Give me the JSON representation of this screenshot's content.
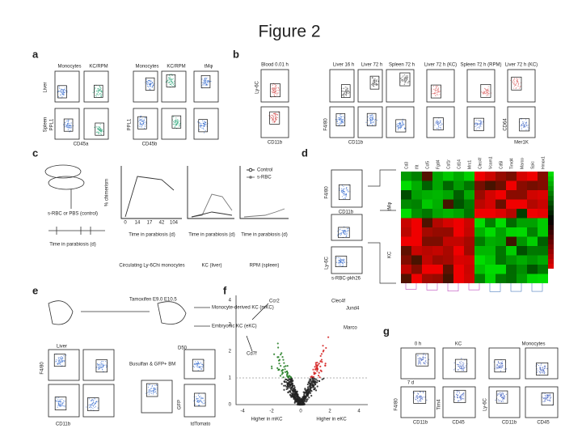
{
  "title": "Figure 2",
  "panels": {
    "a": {
      "label": "a",
      "columns": [
        "Monocytes",
        "KC/RPM",
        "Monocytes",
        "KC/RPM",
        "tMφ"
      ],
      "rows": [
        "Liver",
        "Spleen"
      ],
      "x_axis": [
        "CD45a",
        "CD45b"
      ],
      "y_axis": [
        "PPL1",
        "PPL1"
      ]
    },
    "b": {
      "label": "b",
      "columns": [
        "Blood 0.01 h",
        "Liver 16 h",
        "Liver 72 h",
        "Spleen 72 h",
        "Liver 72 h (KC)",
        "Spleen 72 h (RPM)",
        "Liver 72 h (KC)"
      ],
      "x_axis": [
        "CD11b",
        "CD11b",
        "Mer1K"
      ],
      "y_axis": [
        "Ly-6C",
        "F4/80",
        "CD64"
      ]
    },
    "c": {
      "label": "c",
      "treatment": "s-RBC or PBS (control)",
      "legend": [
        "Control",
        "s-RBC"
      ],
      "y_axis": "% chimerism",
      "ticks": [
        "0",
        "14",
        "17",
        "42",
        "104"
      ],
      "x_axis": "Time in parabiosis (d)",
      "captions": [
        "Circulating Ly-6Chi monocytes",
        "KC (liver)",
        "RPM (spleen)"
      ]
    },
    "d": {
      "label": "d",
      "x_axis": [
        "CD11b",
        "s-RBC-pkh26"
      ],
      "y_axis": [
        "F4/80",
        "Ly-6C"
      ],
      "rows": [
        "tMφ",
        "KC"
      ],
      "genes": [
        "Cd3",
        "Ifit",
        "Ccl5",
        "Fgd4",
        "Csf1r",
        "Cd14",
        "Mrc1",
        "Clec4f",
        "Vcam1",
        "Cd5l",
        "Timd4",
        "Marco",
        "Spic",
        "Hmox1"
      ]
    },
    "e": {
      "label": "e",
      "treatment": "Tamoxifen E9.0 E10.5",
      "outcomes": [
        "Monocyte-derived KC (mKC)",
        "Embryonic KC (eKC)"
      ],
      "protocol": "Busulfan & GFP+ BM",
      "day": "D50",
      "row": "Liver",
      "x_axis": [
        "CD11b",
        "tdTomato"
      ],
      "y_axis": [
        "F4/80",
        "GFP"
      ]
    },
    "f": {
      "label": "f",
      "genes": [
        "Ccr2",
        "Cd7f",
        "Clec4f",
        "Jund4",
        "Marco"
      ],
      "yticks": [
        "0",
        "1",
        "2",
        "3",
        "4"
      ],
      "xticks": [
        "-4",
        "-2",
        "0",
        "2",
        "4"
      ],
      "x_axis": [
        "Higher in mKC",
        "Higher in eKC"
      ]
    },
    "g": {
      "label": "g",
      "columns": [
        "0 h",
        "KC",
        "Monocytes"
      ],
      "row": "7 d",
      "x_axis": [
        "CD11b",
        "CD45",
        "CD11b",
        "CD45"
      ],
      "y_axis": [
        "F4/80",
        "Tim4",
        "Ly-6C"
      ]
    }
  }
}
